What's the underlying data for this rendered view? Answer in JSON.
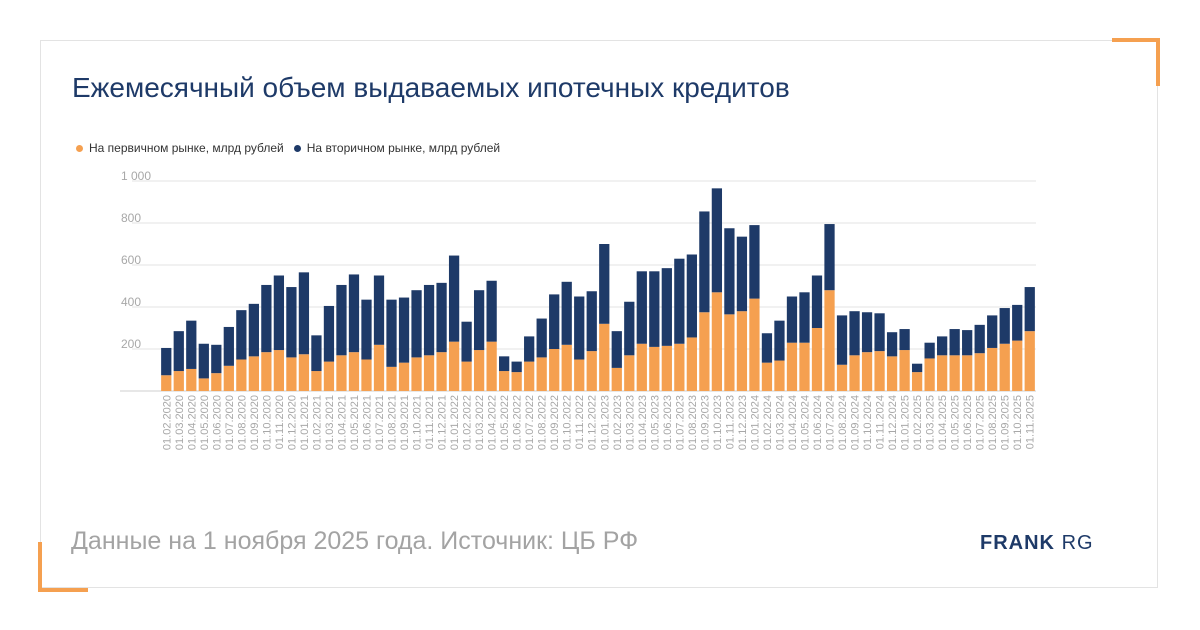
{
  "colors": {
    "primary": "#f5a050",
    "secondary": "#1e3a68",
    "accent": "#f5a050",
    "grid": "#e3e3e3",
    "tick_text": "#a8a8a8"
  },
  "title": "Ежемесячный объем выдаваемых ипотечных кредитов",
  "footer": {
    "note": "Данные на 1 ноября 2025 года. Источник: ЦБ РФ"
  },
  "logo": {
    "bold": "FRANK",
    "light": "RG"
  },
  "chart_data": {
    "type": "bar",
    "stacked": true,
    "legend_position": "top-left",
    "grid": true,
    "ylim": [
      0,
      1000
    ],
    "yticks": [
      "200",
      "400",
      "600",
      "800",
      "1 000"
    ],
    "categories": [
      "01.02.2020",
      "01.03.2020",
      "01.04.2020",
      "01.05.2020",
      "01.06.2020",
      "01.07.2020",
      "01.08.2020",
      "01.09.2020",
      "01.10.2020",
      "01.11.2020",
      "01.12.2020",
      "01.01.2021",
      "01.02.2021",
      "01.03.2021",
      "01.04.2021",
      "01.05.2021",
      "01.06.2021",
      "01.07.2021",
      "01.08.2021",
      "01.09.2021",
      "01.10.2021",
      "01.11.2021",
      "01.12.2021",
      "01.01.2022",
      "01.02.2022",
      "01.03.2022",
      "01.04.2022",
      "01.05.2022",
      "01.06.2022",
      "01.07.2022",
      "01.08.2022",
      "01.09.2022",
      "01.10.2022",
      "01.11.2022",
      "01.12.2022",
      "01.01.2023",
      "01.02.2023",
      "01.03.2023",
      "01.04.2023",
      "01.05.2023",
      "01.06.2023",
      "01.07.2023",
      "01.08.2023",
      "01.09.2023",
      "01.10.2023",
      "01.11.2023",
      "01.12.2023",
      "01.01.2024",
      "01.02.2024",
      "01.03.2024",
      "01.04.2024",
      "01.05.2024",
      "01.06.2024",
      "01.07.2024",
      "01.08.2024",
      "01.09.2024",
      "01.10.2024",
      "01.11.2024",
      "01.12.2024",
      "01.01.2025",
      "01.02.2025",
      "01.03.2025",
      "01.04.2025",
      "01.05.2025",
      "01.06.2025",
      "01.07.2025",
      "01.08.2025",
      "01.09.2025",
      "01.10.2025",
      "01.11.2025"
    ],
    "series": [
      {
        "name": "На первичном рынке, млрд рублей",
        "color": "#f5a050",
        "values": [
          75,
          95,
          105,
          60,
          85,
          120,
          150,
          165,
          185,
          195,
          160,
          175,
          95,
          140,
          170,
          185,
          150,
          220,
          115,
          135,
          160,
          170,
          185,
          235,
          140,
          195,
          235,
          95,
          90,
          140,
          160,
          200,
          220,
          150,
          190,
          320,
          110,
          170,
          225,
          210,
          215,
          225,
          255,
          375,
          470,
          365,
          380,
          440,
          135,
          145,
          230,
          230,
          300,
          480,
          125,
          170,
          185,
          190,
          165,
          195,
          90,
          155,
          170,
          170,
          170,
          180,
          205,
          225,
          240,
          285
        ]
      },
      {
        "name": "На вторичном рынке, млрд рублей",
        "color": "#1e3a68",
        "values": [
          130,
          190,
          230,
          165,
          135,
          185,
          235,
          250,
          320,
          355,
          335,
          390,
          170,
          265,
          335,
          370,
          285,
          330,
          320,
          310,
          320,
          335,
          330,
          410,
          190,
          285,
          290,
          70,
          50,
          120,
          185,
          260,
          300,
          300,
          285,
          380,
          175,
          255,
          345,
          360,
          370,
          405,
          395,
          480,
          495,
          410,
          355,
          350,
          140,
          190,
          220,
          240,
          250,
          315,
          235,
          210,
          190,
          180,
          115,
          100,
          40,
          75,
          90,
          125,
          120,
          135,
          155,
          170,
          170,
          210
        ]
      }
    ]
  }
}
